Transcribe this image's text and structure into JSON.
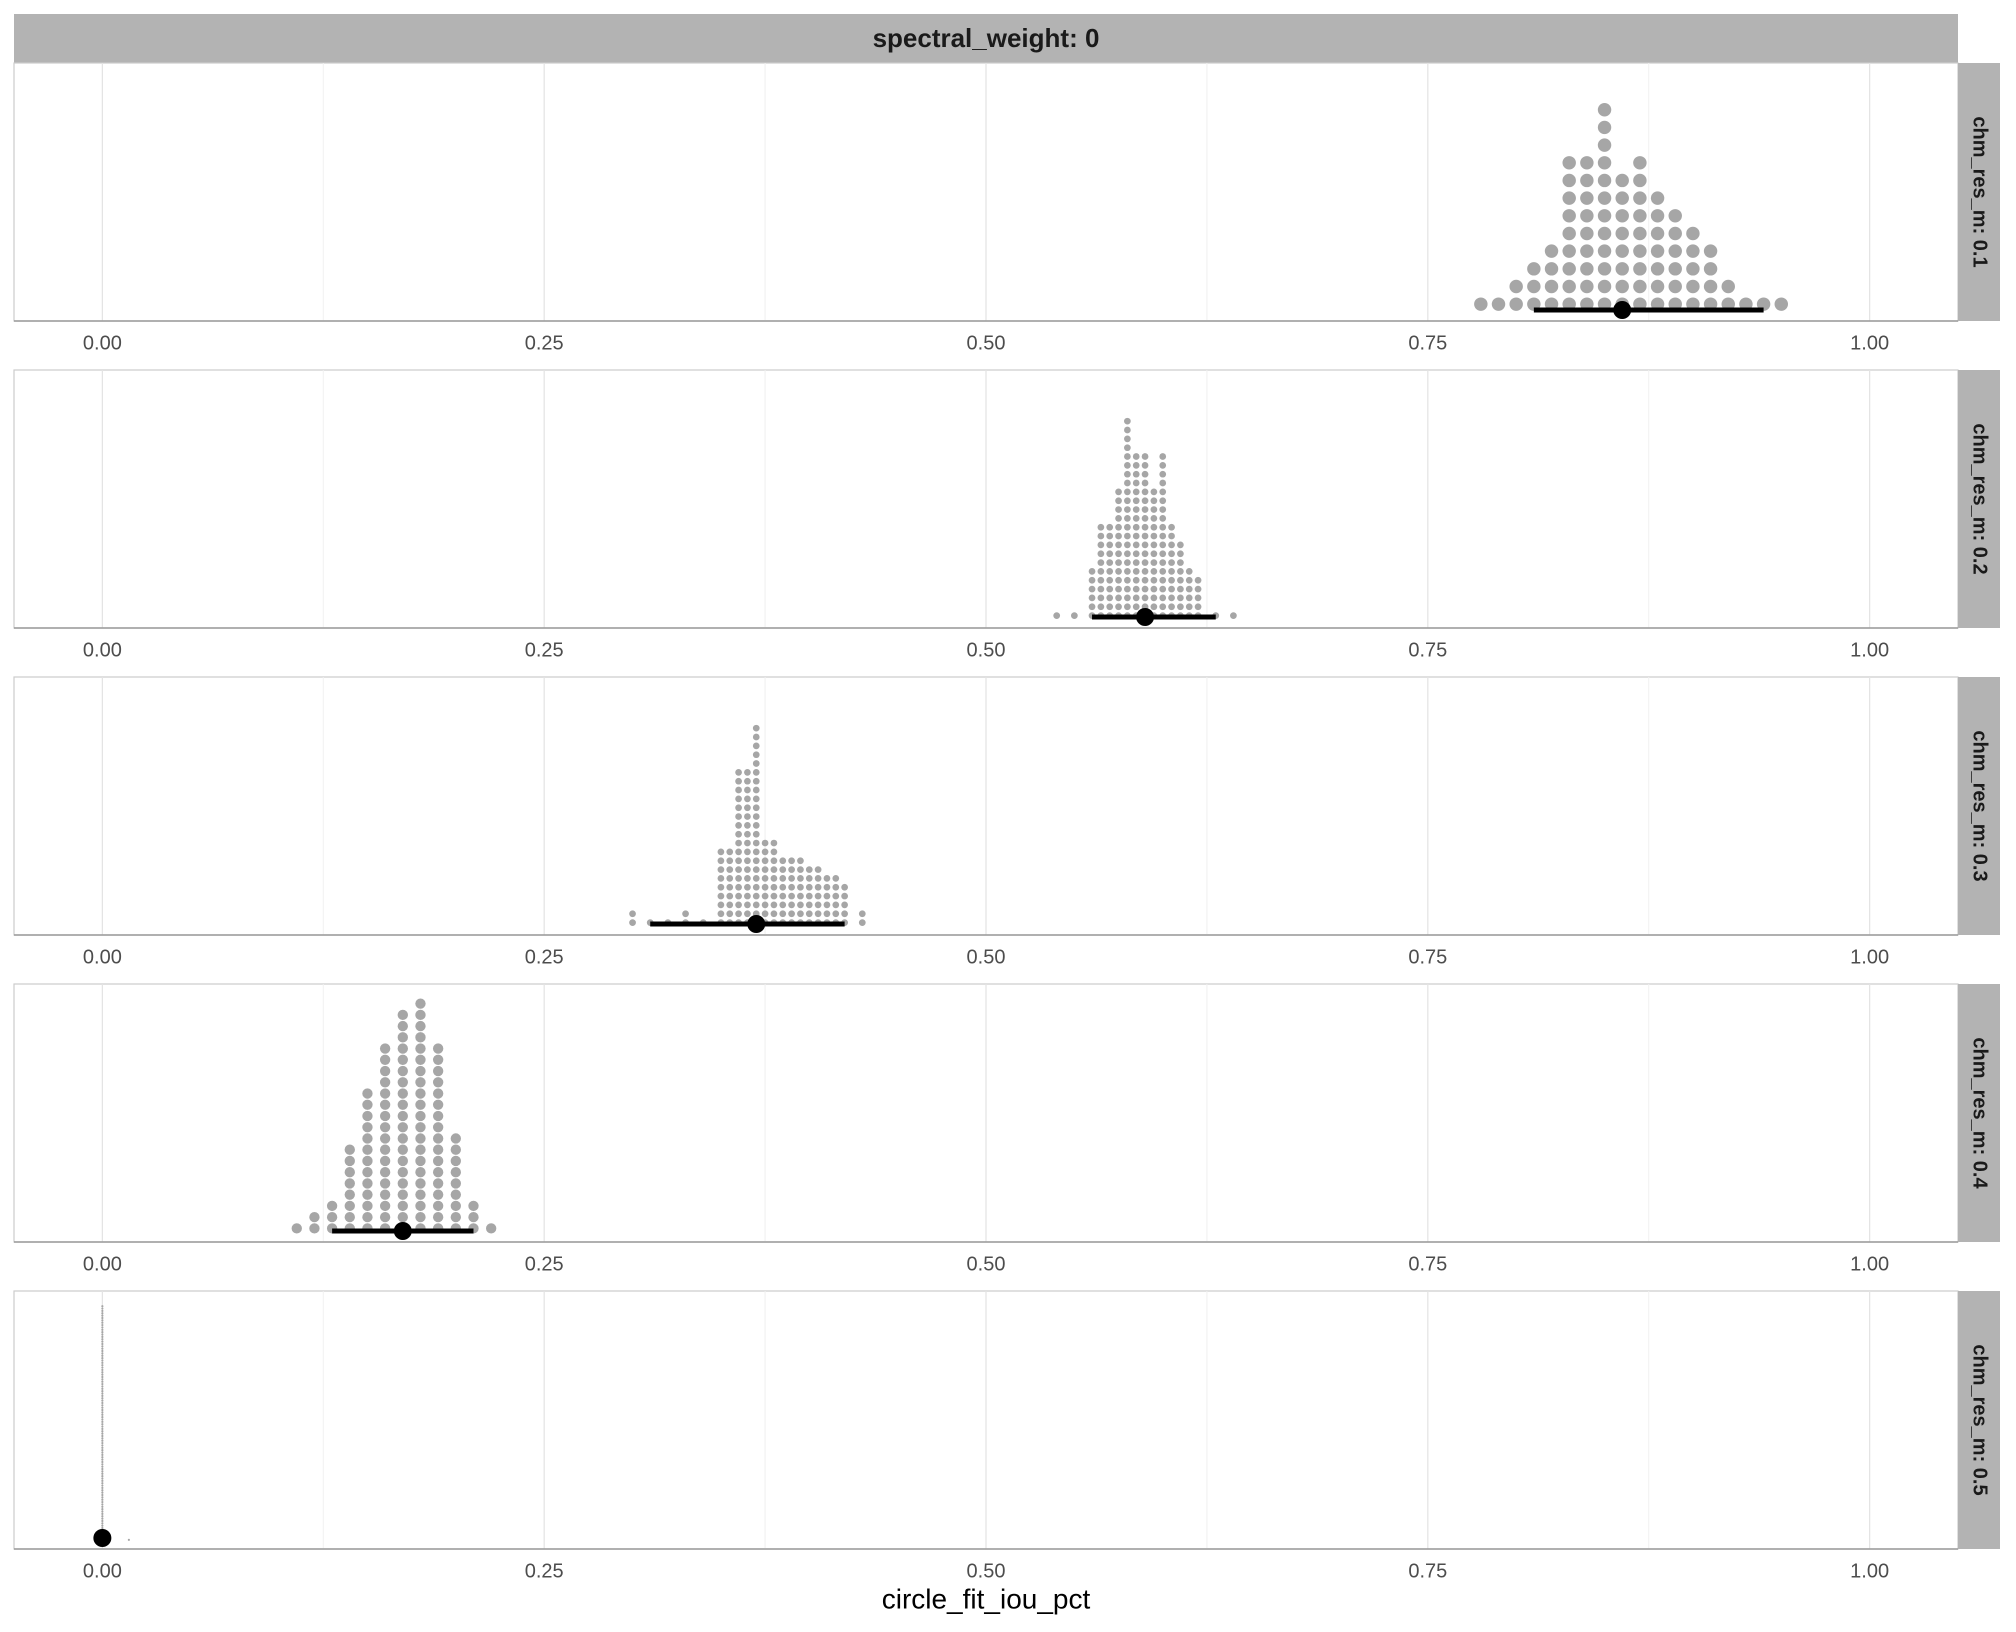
{
  "chart_data": [
    {
      "type": "dotplot",
      "title": "spectral_weight: 0",
      "facet": "chm_res_m: 0.1",
      "color": "#a6a6a6",
      "x": [
        0.78,
        0.79,
        0.8,
        0.81,
        0.82,
        0.83,
        0.84,
        0.85,
        0.86,
        0.87,
        0.88,
        0.89,
        0.9,
        0.91,
        0.92,
        0.93,
        0.94,
        0.95
      ],
      "values": [
        1,
        1,
        2,
        3,
        4,
        9,
        9,
        12,
        8,
        9,
        7,
        6,
        5,
        4,
        2,
        1,
        1,
        1
      ],
      "point": 0.86,
      "interval": [
        0.81,
        0.94
      ],
      "xlim": [
        -0.05,
        1.05
      ],
      "xticks": [
        {
          "value": 0,
          "label": "0.00"
        },
        {
          "value": 0.25,
          "label": "0.25"
        },
        {
          "value": 0.5,
          "label": "0.50"
        },
        {
          "value": 0.75,
          "label": "0.75"
        },
        {
          "value": 1,
          "label": "1.00"
        }
      ],
      "minor_xticks": [
        0.125,
        0.375,
        0.625,
        0.875
      ],
      "grid": true
    },
    {
      "type": "dotplot",
      "facet": "chm_res_m: 0.2",
      "color": "#a6a6a6",
      "x": [
        0.54,
        0.55,
        0.56,
        0.565,
        0.57,
        0.575,
        0.58,
        0.585,
        0.59,
        0.595,
        0.6,
        0.605,
        0.61,
        0.615,
        0.62,
        0.63,
        0.64
      ],
      "values": [
        1,
        1,
        6,
        11,
        11,
        15,
        23,
        19,
        19,
        15,
        19,
        11,
        9,
        6,
        5,
        1,
        1
      ],
      "point": 0.59,
      "interval": [
        0.56,
        0.63
      ],
      "xlim": [
        -0.05,
        1.05
      ],
      "xticks": [
        {
          "value": 0,
          "label": "0.00"
        },
        {
          "value": 0.25,
          "label": "0.25"
        },
        {
          "value": 0.5,
          "label": "0.50"
        },
        {
          "value": 0.75,
          "label": "0.75"
        },
        {
          "value": 1,
          "label": "1.00"
        }
      ],
      "minor_xticks": [
        0.125,
        0.375,
        0.625,
        0.875
      ],
      "grid": true
    },
    {
      "type": "dotplot",
      "facet": "chm_res_m: 0.3",
      "color": "#a6a6a6",
      "x": [
        0.3,
        0.31,
        0.32,
        0.33,
        0.34,
        0.35,
        0.355,
        0.36,
        0.365,
        0.37,
        0.375,
        0.38,
        0.385,
        0.39,
        0.395,
        0.4,
        0.405,
        0.41,
        0.415,
        0.42,
        0.43
      ],
      "values": [
        2,
        1,
        1,
        2,
        1,
        9,
        9,
        18,
        18,
        23,
        10,
        10,
        8,
        8,
        8,
        7,
        7,
        6,
        6,
        5,
        2
      ],
      "point": 0.37,
      "interval": [
        0.31,
        0.42
      ],
      "xlim": [
        -0.05,
        1.05
      ],
      "xticks": [
        {
          "value": 0,
          "label": "0.00"
        },
        {
          "value": 0.25,
          "label": "0.25"
        },
        {
          "value": 0.5,
          "label": "0.50"
        },
        {
          "value": 0.75,
          "label": "0.75"
        },
        {
          "value": 1,
          "label": "1.00"
        }
      ],
      "minor_xticks": [
        0.125,
        0.375,
        0.625,
        0.875
      ],
      "grid": true
    },
    {
      "type": "dotplot",
      "facet": "chm_res_m: 0.4",
      "color": "#a6a6a6",
      "x": [
        0.11,
        0.12,
        0.13,
        0.14,
        0.15,
        0.16,
        0.17,
        0.18,
        0.19,
        0.2,
        0.21,
        0.22
      ],
      "values": [
        1,
        2,
        3,
        8,
        13,
        17,
        20,
        21,
        17,
        9,
        3,
        1
      ],
      "point": 0.17,
      "interval": [
        0.13,
        0.21
      ],
      "xlim": [
        -0.05,
        1.05
      ],
      "xticks": [
        {
          "value": 0,
          "label": "0.00"
        },
        {
          "value": 0.25,
          "label": "0.25"
        },
        {
          "value": 0.5,
          "label": "0.50"
        },
        {
          "value": 0.75,
          "label": "0.75"
        },
        {
          "value": 1,
          "label": "1.00"
        }
      ],
      "minor_xticks": [
        0.125,
        0.375,
        0.625,
        0.875
      ],
      "grid": true
    },
    {
      "type": "dotplot",
      "facet": "chm_res_m: 0.5",
      "color": "#a6a6a6",
      "x_label": "circle_fit_iou_pct",
      "x": [
        0,
        0.015
      ],
      "values": [
        100,
        1
      ],
      "point": 0,
      "interval": [
        0,
        0
      ],
      "xlim": [
        -0.05,
        1.05
      ],
      "xticks": [
        {
          "value": 0,
          "label": "0.00"
        },
        {
          "value": 0.25,
          "label": "0.25"
        },
        {
          "value": 0.5,
          "label": "0.50"
        },
        {
          "value": 0.75,
          "label": "0.75"
        },
        {
          "value": 1,
          "label": "1.00"
        }
      ],
      "minor_xticks": [
        0.125,
        0.375,
        0.625,
        0.875
      ],
      "grid": true
    }
  ]
}
